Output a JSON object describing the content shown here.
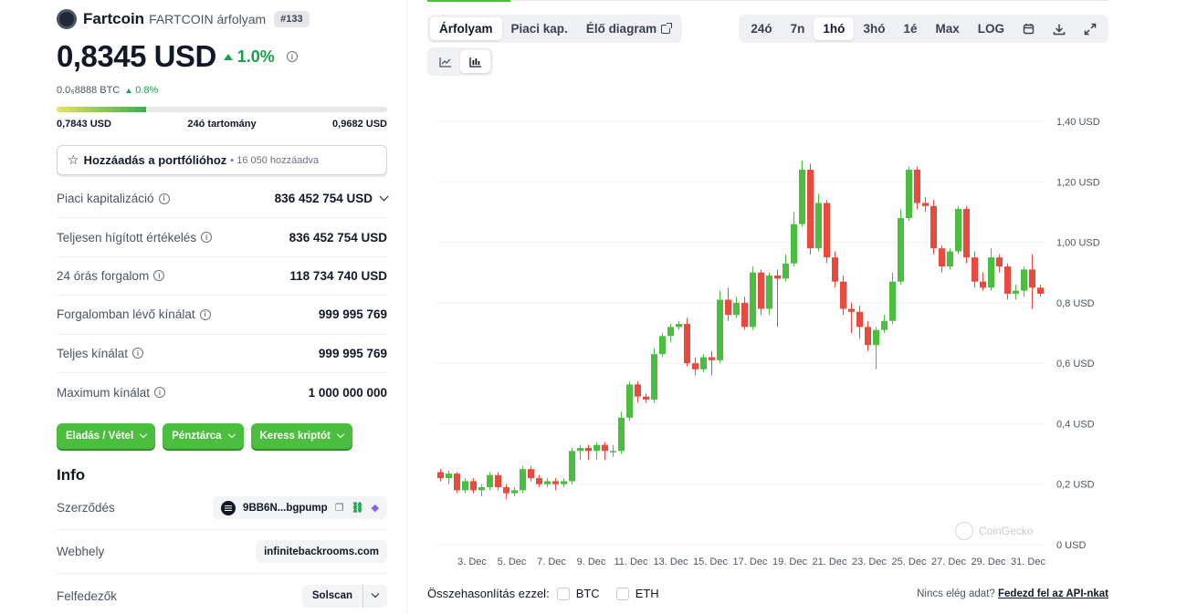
{
  "coin": {
    "name": "Fartcoin",
    "subtitle": "FARTCOIN árfolyam",
    "rank": "#133",
    "price": "0,8345 USD",
    "price_change": "1.0%",
    "btc_price": "0.0₅8888 BTC",
    "btc_change": "0.8%"
  },
  "range24h": {
    "low": "0,7843 USD",
    "label": "24ó tartomány",
    "high": "0,9682 USD",
    "fill_fraction": 0.27
  },
  "portfolio": {
    "label": "Hozzáadás a portfólióhoz",
    "count": "• 16 050 hozzáadva"
  },
  "stats": [
    {
      "label": "Piaci kapitalizáció",
      "value": "836 452 754 USD"
    },
    {
      "label": "Teljesen hígított értékelés",
      "value": "836 452 754 USD"
    },
    {
      "label": "24 órás forgalom",
      "value": "118 734 740 USD"
    },
    {
      "label": "Forgalomban lévő kínálat",
      "value": "999 995 769"
    },
    {
      "label": "Teljes kínálat",
      "value": "999 995 769"
    },
    {
      "label": "Maximum kínálat",
      "value": "1 000 000 000"
    }
  ],
  "actions": [
    "Eladás / Vétel",
    "Pénztárca",
    "Keress kriptót"
  ],
  "info": {
    "title": "Info",
    "contract_label": "Szerződés",
    "contract_value": "9BB6N...bgpump",
    "website_label": "Webhely",
    "website_value": "infinitebackrooms.com",
    "explorers_label": "Felfedezők",
    "explorers_value": "Solscan"
  },
  "tabs": [
    "Árfolyam",
    "Piaci kap.",
    "Élő diagram"
  ],
  "ranges": [
    "24ó",
    "7n",
    "1hó",
    "3hó",
    "1é",
    "Max",
    "LOG"
  ],
  "icons": {
    "calendar": "calendar-icon",
    "download": "download-icon",
    "fullscreen": "expand-icon",
    "line_chart": "line-chart-icon",
    "candle_chart": "candlestick-icon"
  },
  "colors": {
    "up": "#4bbd3f",
    "down": "#ea4a3e",
    "accent": "#4bbd3f"
  },
  "chart_data": {
    "type": "candlestick",
    "y_tick_labels": [
      "1,40 USD",
      "1,20 USD",
      "1,00 USD",
      "0,8 USD",
      "0,6 USD",
      "0,4 USD",
      "0,2 USD",
      "0 USD"
    ],
    "y_ticks": [
      1.4,
      1.2,
      1.0,
      0.8,
      0.6,
      0.4,
      0.2,
      0
    ],
    "ylim": [
      0,
      1.4
    ],
    "x_tick_labels": [
      "3. Dec",
      "5. Dec",
      "7. Dec",
      "9. Dec",
      "11. Dec",
      "13. Dec",
      "15. Dec",
      "17. Dec",
      "19. Dec",
      "21. Dec",
      "23. Dec",
      "25. Dec",
      "27. Dec",
      "29. Dec",
      "31. Dec"
    ],
    "watermark": "CoinGecko",
    "candles": [
      [
        0.24,
        0.22,
        0.25,
        0.21
      ],
      [
        0.22,
        0.235,
        0.245,
        0.2
      ],
      [
        0.235,
        0.18,
        0.24,
        0.17
      ],
      [
        0.18,
        0.21,
        0.22,
        0.17
      ],
      [
        0.21,
        0.18,
        0.22,
        0.17
      ],
      [
        0.18,
        0.19,
        0.2,
        0.16
      ],
      [
        0.19,
        0.23,
        0.24,
        0.18
      ],
      [
        0.23,
        0.19,
        0.24,
        0.18
      ],
      [
        0.19,
        0.17,
        0.2,
        0.15
      ],
      [
        0.17,
        0.18,
        0.19,
        0.16
      ],
      [
        0.18,
        0.25,
        0.26,
        0.17
      ],
      [
        0.25,
        0.22,
        0.26,
        0.21
      ],
      [
        0.22,
        0.2,
        0.23,
        0.19
      ],
      [
        0.2,
        0.21,
        0.22,
        0.19
      ],
      [
        0.21,
        0.2,
        0.22,
        0.18
      ],
      [
        0.2,
        0.21,
        0.22,
        0.19
      ],
      [
        0.21,
        0.31,
        0.32,
        0.2
      ],
      [
        0.31,
        0.32,
        0.33,
        0.28
      ],
      [
        0.32,
        0.31,
        0.33,
        0.28
      ],
      [
        0.31,
        0.33,
        0.34,
        0.28
      ],
      [
        0.33,
        0.31,
        0.34,
        0.28
      ],
      [
        0.31,
        0.31,
        0.33,
        0.29
      ],
      [
        0.31,
        0.42,
        0.44,
        0.3
      ],
      [
        0.42,
        0.53,
        0.54,
        0.41
      ],
      [
        0.53,
        0.49,
        0.54,
        0.47
      ],
      [
        0.49,
        0.48,
        0.5,
        0.47
      ],
      [
        0.48,
        0.63,
        0.65,
        0.47
      ],
      [
        0.63,
        0.69,
        0.7,
        0.62
      ],
      [
        0.69,
        0.72,
        0.73,
        0.67
      ],
      [
        0.72,
        0.73,
        0.74,
        0.71
      ],
      [
        0.73,
        0.6,
        0.75,
        0.59
      ],
      [
        0.6,
        0.58,
        0.62,
        0.56
      ],
      [
        0.58,
        0.62,
        0.63,
        0.57
      ],
      [
        0.62,
        0.61,
        0.64,
        0.56
      ],
      [
        0.61,
        0.81,
        0.84,
        0.6
      ],
      [
        0.81,
        0.76,
        0.85,
        0.74
      ],
      [
        0.76,
        0.8,
        0.82,
        0.75
      ],
      [
        0.8,
        0.72,
        0.82,
        0.71
      ],
      [
        0.72,
        0.9,
        0.92,
        0.71
      ],
      [
        0.9,
        0.78,
        0.91,
        0.76
      ],
      [
        0.78,
        0.89,
        0.9,
        0.76
      ],
      [
        0.89,
        0.88,
        0.91,
        0.72
      ],
      [
        0.88,
        0.93,
        0.96,
        0.87
      ],
      [
        0.93,
        1.06,
        1.1,
        0.92
      ],
      [
        1.06,
        1.24,
        1.27,
        1.05
      ],
      [
        1.24,
        0.98,
        1.26,
        0.96
      ],
      [
        0.98,
        1.13,
        1.16,
        0.97
      ],
      [
        1.13,
        0.95,
        1.14,
        0.93
      ],
      [
        0.95,
        0.87,
        0.97,
        0.85
      ],
      [
        0.87,
        0.78,
        0.89,
        0.76
      ],
      [
        0.78,
        0.77,
        0.8,
        0.7
      ],
      [
        0.77,
        0.72,
        0.79,
        0.68
      ],
      [
        0.72,
        0.66,
        0.74,
        0.64
      ],
      [
        0.66,
        0.71,
        0.72,
        0.58
      ],
      [
        0.71,
        0.74,
        0.76,
        0.7
      ],
      [
        0.74,
        0.87,
        0.9,
        0.73
      ],
      [
        0.87,
        1.08,
        1.11,
        0.86
      ],
      [
        1.08,
        1.24,
        1.25,
        1.07
      ],
      [
        1.24,
        1.13,
        1.25,
        1.11
      ],
      [
        1.13,
        1.12,
        1.15,
        1.1
      ],
      [
        1.12,
        0.98,
        1.14,
        0.96
      ],
      [
        0.98,
        0.92,
        0.99,
        0.9
      ],
      [
        0.92,
        0.97,
        0.98,
        0.91
      ],
      [
        0.97,
        1.11,
        1.12,
        0.96
      ],
      [
        1.11,
        0.95,
        1.12,
        0.93
      ],
      [
        0.95,
        0.87,
        0.97,
        0.85
      ],
      [
        0.87,
        0.85,
        0.9,
        0.84
      ],
      [
        0.85,
        0.95,
        0.98,
        0.84
      ],
      [
        0.95,
        0.92,
        0.96,
        0.9
      ],
      [
        0.92,
        0.83,
        0.93,
        0.81
      ],
      [
        0.83,
        0.84,
        0.86,
        0.81
      ],
      [
        0.84,
        0.91,
        0.92,
        0.82
      ],
      [
        0.91,
        0.85,
        0.96,
        0.78
      ],
      [
        0.85,
        0.83,
        0.86,
        0.82
      ]
    ]
  },
  "compare": {
    "label": "Összehasonlítás ezzel:",
    "items": [
      "BTC",
      "ETH"
    ]
  },
  "api_note": {
    "text": "Nincs elég adat?",
    "link": "Fedezd fel az API-nkat"
  }
}
